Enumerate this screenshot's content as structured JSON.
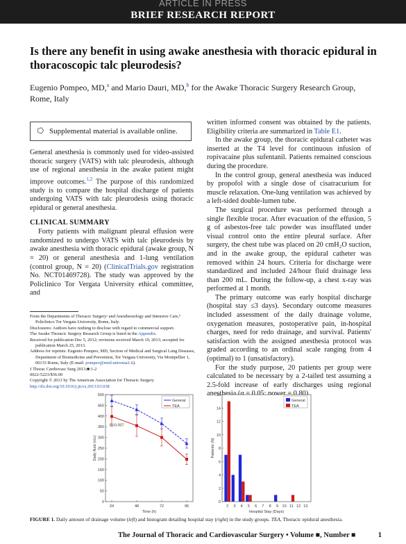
{
  "header": {
    "banner": "ARTICLE IN PRESS",
    "section": "BRIEF RESEARCH REPORT"
  },
  "title": "Is there any benefit in using awake anesthesia with thoracic epidural in thoracoscopic talc pleurodesis?",
  "authors": {
    "a1_name": "Eugenio Pompeo, MD,",
    "a1_sup": "a",
    "mid": " and Mario Dauri, MD,",
    "a2_sup": "b",
    "rest": " for the Awake Thoracic Surgery Research Group, Rome, Italy"
  },
  "supplemental": {
    "icon": "supplement-icon",
    "text": "Supplemental material is available online."
  },
  "left_col": {
    "intro_pre": "General anesthesia is commonly used for video-assisted thoracic surgery (VATS) with talc pleurodesis, although use of regional anesthesia in the awake patient might improve outcomes.",
    "intro_ref": "1,2",
    "intro_post": " The purpose of this randomized study is to compare the hospital discharge of patients undergoing VATS with talc pleurodesis using thoracic epidural or general anesthesia.",
    "section": "CLINICAL SUMMARY",
    "p1_pre": "Forty patients with malignant pleural effusion were randomized to undergo VATS with talc pleurodesis by awake anesthesia with thoracic epidural (awake group, N = 20) or general anesthesia and 1-lung ventilation (control group, N = 20) (",
    "p1_link": "ClinicalTrials.gov",
    "p1_post": " registration No. NCT01469728). The study was approved by the Policlinico Tor Vergata University ethical committee, and"
  },
  "right_col": {
    "p0_pre": "written informed consent was obtained by the patients. Eligibility criteria are summarized in ",
    "p0_link": "Table E1",
    "p0_post": ".",
    "p1": "In the awake group, the thoracic epidural catheter was inserted at the T4 level for continuous infusion of ropivacaine plus sufentanil. Patients remained conscious during the procedure.",
    "p2": "In the control group, general anesthesia was induced by propofol with a single dose of cisatracurium for muscle relaxation. One-lung ventilation was achieved by a left-sided double-lumen tube.",
    "p3": "The surgical procedure was performed through a single flexible trocar. After evacuation of the effusion, 5 g of asbestos-free talc powder was insufflated under visual control onto the entire pleural surface. After surgery, the chest tube was placed on 20 cmH₂O suction, and in the awake group, the epidural catheter was removed within 24 hours. Criteria for discharge were standardized and included 24/hour fluid drainage less than 200 mL. During the follow-up, a chest x-ray was performed at 1 month.",
    "p4": "The primary outcome was early hospital discharge (hospital stay ≤3 days). Secondary outcome measures included assessment of the daily drainage volume, oxygenation measures, postoperative pain, in-hospital charges, need for redo drainage, and survival. Patients' satisfaction with the assigned anesthesia protocol was graded according to an ordinal scale ranging from 4 (optimal) to 1 (unsatisfactory).",
    "p5": "For the study purpose, 20 patients per group were calculated to be necessary by a 2-tailed test assuming a 2.5-fold increase of early discharges using regional anesthesia (α = 0.05; power = 0.80)."
  },
  "footnotes": {
    "f1": "From the Departments of Thoracic Surgeryᵃ and Anesthesiology and Intensive Care,ᵇ Policlinico Tor Vergata University, Rome, Italy.",
    "f2_pre": "Disclosures: Authors have nothing to disclose with regard to commercial support.",
    "f3_pre": "The Awake Thoracic Surgery Research Group is listed in the ",
    "f3_link": "Appendix",
    "f3_post": ".",
    "f4": "Received for publication Dec 5, 2012; revisions received March 19, 2013; accepted for publication March 25, 2013.",
    "f5_pre": "Address for reprints: Eugenio Pompeo, MD, Section of Medical and Surgical Lung Diseases, Department of Biomedicine and Prevention, Tor Vergata University, Via Montpellier 1, 00133 Rome, Italy (E-mail: ",
    "f5_link": "pompeo@med.uniroma2.it",
    "f5_post": ").",
    "f6": "J Thorac Cardiovasc Surg 2013;■:1-2",
    "f7": "0022-5223/$36.00",
    "f8": "Copyright © 2013 by The American Association for Thoracic Surgery",
    "f9": "http://dx.doi.org/10.1016/j.jtcvs.2013.03.038"
  },
  "chart_data": [
    {
      "type": "line",
      "ylabel": "Daily fluid (mL)",
      "xlabel": "Time (h)",
      "x": [
        24,
        48,
        72,
        96
      ],
      "ylim": [
        0,
        500
      ],
      "yticks": [
        "500",
        "450",
        "400",
        "350",
        "300",
        "250",
        "200",
        "150",
        "100",
        "50",
        "0"
      ],
      "xticks": [
        "24",
        "48",
        "72",
        "96"
      ],
      "legend_position": "top-right",
      "series": [
        {
          "name": "General",
          "color": "#1c28d8",
          "values": [
            472,
            430,
            365,
            272
          ],
          "err": [
            25,
            22,
            25,
            22
          ]
        },
        {
          "name": "TEA",
          "color": "#c81a1a",
          "values": [
            398,
            355,
            300,
            198
          ],
          "err": [
            45,
            50,
            40,
            25
          ]
        }
      ],
      "annotation": "P=0.007"
    },
    {
      "type": "bar",
      "ylabel": "Patients (N)",
      "xlabel": "Hospital Stay (Days)",
      "ylim": [
        0,
        16
      ],
      "yticks": [
        "16",
        "14",
        "12",
        "10",
        "8",
        "6",
        "4",
        "2",
        "0"
      ],
      "xticks": [
        "2",
        "3",
        "4",
        "5",
        "6",
        "7",
        "8",
        "9",
        "10",
        "11",
        "12",
        "13"
      ],
      "categories": [
        2,
        3,
        4,
        5,
        6,
        7,
        8,
        9,
        10,
        11,
        12,
        13
      ],
      "legend_position": "top-right",
      "series": [
        {
          "name": "General",
          "color": "#1c28d8",
          "values": [
            7,
            4,
            7,
            1,
            0,
            0,
            0,
            1,
            0,
            0,
            0,
            0
          ]
        },
        {
          "name": "TEA",
          "color": "#d01a1a",
          "values": [
            15,
            0,
            3,
            1,
            0,
            0,
            0,
            0,
            0,
            1,
            0,
            0
          ]
        }
      ]
    }
  ],
  "caption": {
    "label": "FIGURE 1.",
    "text_pre": " Daily amount of drainage volume (",
    "left": "left",
    "text_mid": ") and histogram detailing hospital stay (",
    "right": "right",
    "text_mid2": ") in the study groups. ",
    "tea": "TEA",
    "text_post": ", Thoracic epidural anesthesia."
  },
  "footer": {
    "journal": "The Journal of Thoracic and Cardiovascular Surgery • Volume ■, Number ■",
    "page": "1"
  }
}
